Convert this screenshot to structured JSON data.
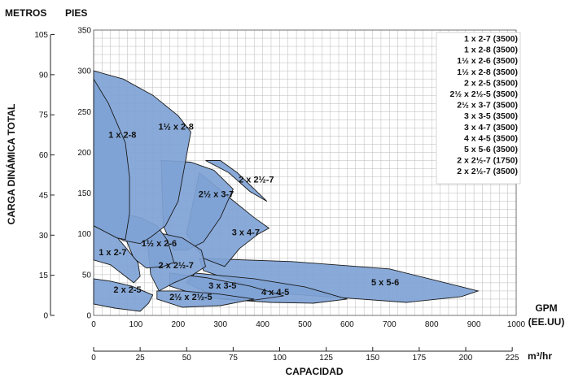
{
  "chart_data": {
    "type": "area",
    "left_axis_title": "METROS",
    "right_axis_title": "PIES",
    "ylabel": "CARGA DINÁMICA TOTAL",
    "x_unit_label": [
      "GPM",
      "(EE.UU)"
    ],
    "x2_unit_label": "m³/hr",
    "xlabel": "CAPACIDAD",
    "xlim_gpm": [
      0,
      1000
    ],
    "ylim_ft": [
      0,
      350
    ],
    "gpm_ticks": [
      "0",
      "100",
      "200",
      "300",
      "400",
      "500",
      "600",
      "700",
      "800",
      "900",
      "1000"
    ],
    "ft_ticks": [
      "0",
      "50",
      "100",
      "150",
      "200",
      "250",
      "300",
      "350"
    ],
    "m_ticks": [
      "0",
      "15",
      "30",
      "45",
      "60",
      "75",
      "90",
      "105"
    ],
    "m3hr_ticks": [
      "0",
      "25",
      "50",
      "75",
      "100",
      "125",
      "150",
      "175",
      "200",
      "225"
    ],
    "grid": true,
    "legend_position": "top-right",
    "legend": [
      "1 x 2-7 (3500)",
      "1 x 2-8 (3500)",
      "1½ x 2-6 (3500)",
      "1½ x 2-8 (3500)",
      "2 x 2-5 (3500)",
      "2½ x 2½-5 (3500)",
      "2½ x 3-7 (3500)",
      "3 x 3-5 (3500)",
      "3 x 4-7 (3500)",
      "4 x 4-5 (3500)",
      "5 x 5-6 (3500)",
      "2 x 2½-7 (1750)",
      "2 x 2½-7 (3500)"
    ],
    "fill_color": "#7fa3d6",
    "edge_color": "#1a1a1a",
    "regions": [
      {
        "label": "5 x 5-6",
        "label_at": [
          690,
          37
        ],
        "boundary": [
          [
            250,
            70
          ],
          [
            470,
            66
          ],
          [
            700,
            57
          ],
          [
            910,
            30
          ],
          [
            870,
            23
          ],
          [
            740,
            16
          ],
          [
            580,
            22
          ],
          [
            410,
            28
          ],
          [
            260,
            55
          ]
        ]
      },
      {
        "label": "4 x 4-5",
        "label_at": [
          430,
          25
        ],
        "boundary": [
          [
            240,
            52
          ],
          [
            380,
            45
          ],
          [
            500,
            35
          ],
          [
            600,
            20
          ],
          [
            520,
            15
          ],
          [
            420,
            16
          ],
          [
            300,
            20
          ],
          [
            220,
            40
          ]
        ]
      },
      {
        "label": "3 x 3-5",
        "label_at": [
          305,
          33
        ],
        "boundary": [
          [
            180,
            52
          ],
          [
            270,
            46
          ],
          [
            370,
            36
          ],
          [
            450,
            24
          ],
          [
            370,
            18
          ],
          [
            265,
            22
          ],
          [
            180,
            36
          ]
        ]
      },
      {
        "label": "2½ x 2½-5",
        "label_at": [
          230,
          19
        ],
        "boundary": [
          [
            150,
            30
          ],
          [
            210,
            30
          ],
          [
            300,
            26
          ],
          [
            380,
            20
          ],
          [
            300,
            12
          ],
          [
            210,
            10
          ],
          [
            150,
            20
          ]
        ]
      },
      {
        "label": "3 x 4-7",
        "label_at": [
          360,
          98
        ],
        "boundary": [
          [
            250,
            175
          ],
          [
            320,
            145
          ],
          [
            380,
            120
          ],
          [
            415,
            107
          ],
          [
            390,
            100
          ],
          [
            345,
            82
          ],
          [
            310,
            60
          ],
          [
            260,
            70
          ],
          [
            220,
            100
          ]
        ]
      },
      {
        "label": "2 x 2½-7",
        "label_at": [
          385,
          163
        ],
        "boundary": [
          [
            265,
            190
          ],
          [
            320,
            175
          ],
          [
            370,
            152
          ],
          [
            410,
            140
          ],
          [
            390,
            150
          ],
          [
            340,
            175
          ],
          [
            300,
            190
          ]
        ]
      },
      {
        "label": "2½ x 3-7",
        "label_at": [
          290,
          145
        ],
        "boundary": [
          [
            160,
            190
          ],
          [
            230,
            188
          ],
          [
            285,
            178
          ],
          [
            330,
            155
          ],
          [
            300,
            120
          ],
          [
            260,
            90
          ],
          [
            220,
            80
          ],
          [
            190,
            80
          ],
          [
            165,
            110
          ]
        ]
      },
      {
        "label": "2 x 2½-7",
        "label_at": [
          195,
          58
        ],
        "boundary": [
          [
            125,
            100
          ],
          [
            165,
            100
          ],
          [
            210,
            95
          ],
          [
            255,
            80
          ],
          [
            265,
            60
          ],
          [
            235,
            50
          ],
          [
            190,
            40
          ],
          [
            155,
            30
          ],
          [
            135,
            50
          ]
        ]
      },
      {
        "label": "1½ x 2-6",
        "label_at": [
          155,
          85
        ],
        "boundary": [
          [
            65,
            125
          ],
          [
            110,
            120
          ],
          [
            150,
            110
          ],
          [
            175,
            92
          ],
          [
            190,
            65
          ],
          [
            165,
            60
          ],
          [
            125,
            58
          ],
          [
            95,
            70
          ],
          [
            75,
            95
          ]
        ]
      },
      {
        "label": "1 x 2-7",
        "label_at": [
          45,
          74
        ],
        "boundary": [
          [
            0,
            120
          ],
          [
            40,
            105
          ],
          [
            65,
            90
          ],
          [
            105,
            65
          ],
          [
            110,
            48
          ],
          [
            95,
            40
          ],
          [
            40,
            62
          ],
          [
            0,
            68
          ]
        ]
      },
      {
        "label": "2 x 2-5",
        "label_at": [
          80,
          28
        ],
        "boundary": [
          [
            0,
            45
          ],
          [
            40,
            42
          ],
          [
            90,
            36
          ],
          [
            140,
            25
          ],
          [
            130,
            15
          ],
          [
            110,
            5
          ],
          [
            50,
            9
          ],
          [
            0,
            14
          ]
        ]
      },
      {
        "label": "1½ x 2-8",
        "label_at": [
          195,
          228
        ],
        "boundary": [
          [
            0,
            300
          ],
          [
            70,
            290
          ],
          [
            140,
            270
          ],
          [
            200,
            245
          ],
          [
            230,
            225
          ],
          [
            200,
            140
          ],
          [
            170,
            110
          ],
          [
            135,
            96
          ],
          [
            110,
            88
          ],
          [
            70,
            92
          ],
          [
            0,
            110
          ]
        ]
      },
      {
        "label": "1 x 2-8",
        "label_at": [
          68,
          218
        ],
        "boundary": [
          [
            0,
            290
          ],
          [
            35,
            260
          ],
          [
            60,
            230
          ],
          [
            75,
            212
          ],
          [
            85,
            170
          ],
          [
            85,
            125
          ],
          [
            75,
            93
          ],
          [
            55,
            95
          ],
          [
            0,
            110
          ]
        ]
      }
    ]
  }
}
